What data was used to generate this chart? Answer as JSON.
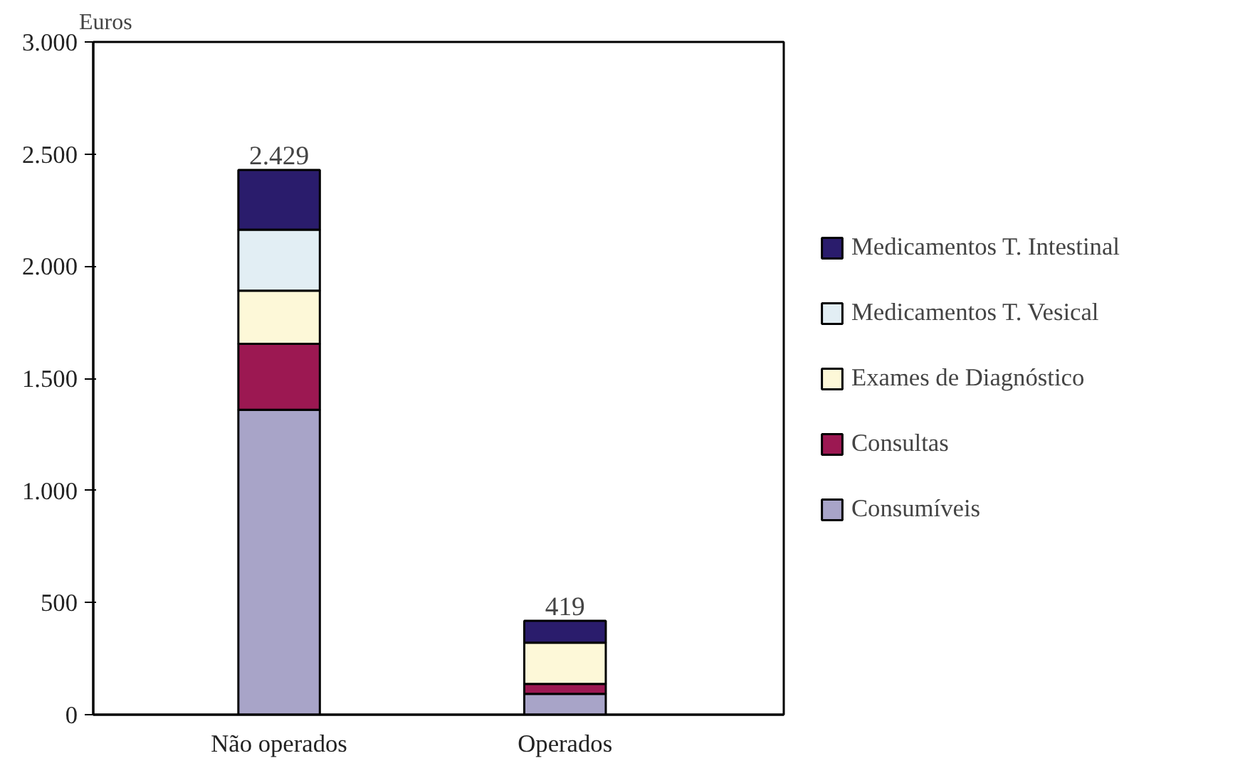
{
  "chart_data": {
    "type": "bar",
    "stacked": true,
    "ylabel": "Euros",
    "categories": [
      "Não operados",
      "Operados"
    ],
    "series": [
      {
        "name": "Consumíveis",
        "color": "#a8a4c8",
        "values": [
          1360,
          93
        ]
      },
      {
        "name": "Consultas",
        "color": "#9c1852",
        "values": [
          294,
          44
        ]
      },
      {
        "name": "Exames de Diagnóstico",
        "color": "#fdf8d8",
        "values": [
          237,
          184
        ]
      },
      {
        "name": "Medicamentos T. Vesical",
        "color": "#e2eef4",
        "values": [
          272,
          0
        ]
      },
      {
        "name": "Medicamentos T. Intestinal",
        "color": "#2a1c6c",
        "values": [
          266,
          98
        ]
      }
    ],
    "totals": [
      "2.429",
      "419"
    ],
    "ylim": [
      0,
      3000
    ],
    "yticks": [
      {
        "value": 0,
        "label": "0"
      },
      {
        "value": 500,
        "label": "500"
      },
      {
        "value": 1000,
        "label": "1.000"
      },
      {
        "value": 1500,
        "label": "1.500"
      },
      {
        "value": 2000,
        "label": "2.000"
      },
      {
        "value": 2500,
        "label": "2.500"
      },
      {
        "value": 3000,
        "label": "3.000"
      }
    ],
    "grid": false,
    "legend": "right"
  }
}
